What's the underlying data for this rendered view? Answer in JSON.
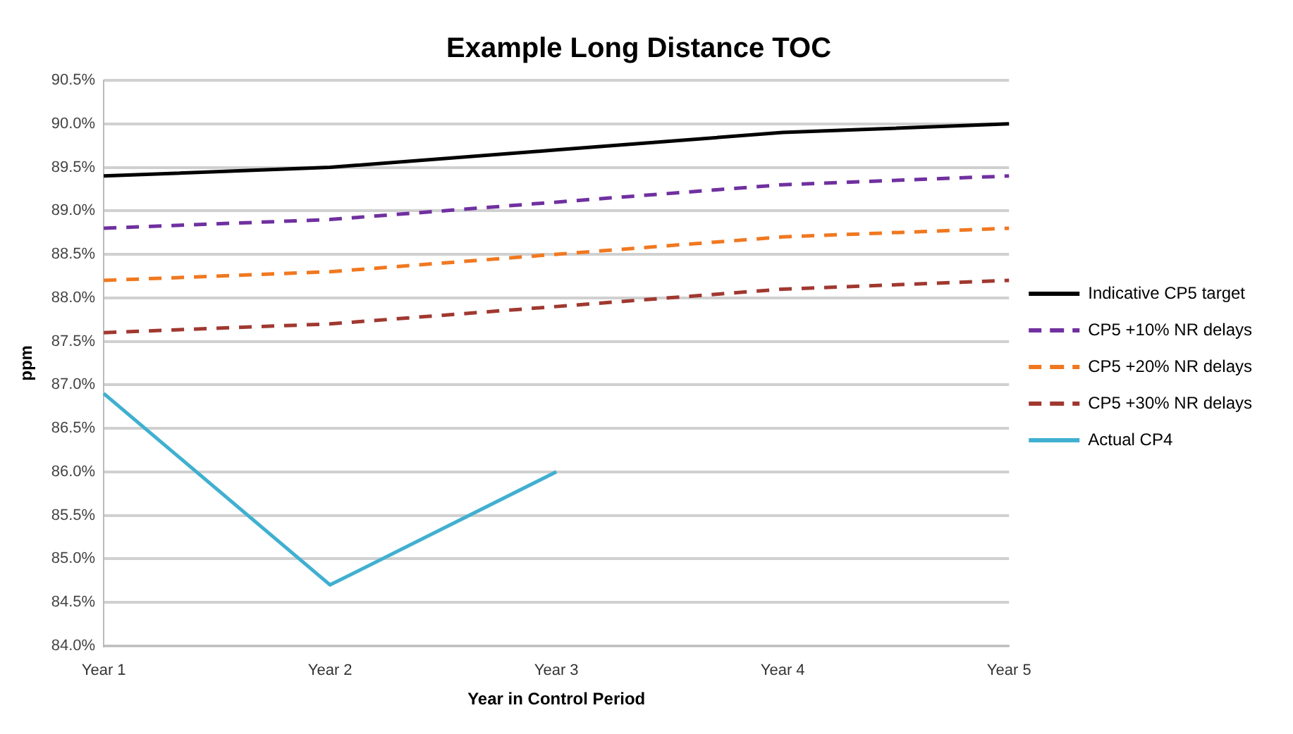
{
  "chart_data": {
    "type": "line",
    "title": "Example Long Distance TOC",
    "xlabel": "Year in Control Period",
    "ylabel": "ppm",
    "categories": [
      "Year 1",
      "Year 2",
      "Year 3",
      "Year 4",
      "Year 5"
    ],
    "series": [
      {
        "name": "Indicative CP5 target",
        "color": "#000000",
        "line_style": "solid",
        "values": [
          89.4,
          89.5,
          89.7,
          89.9,
          90.0
        ]
      },
      {
        "name": "CP5 +10% NR delays",
        "color": "#7030a0",
        "line_style": "dashed",
        "values": [
          88.8,
          88.9,
          89.1,
          89.3,
          89.4
        ]
      },
      {
        "name": "CP5 +20% NR delays",
        "color": "#f07820",
        "line_style": "dashed",
        "values": [
          88.2,
          88.3,
          88.5,
          88.7,
          88.8
        ]
      },
      {
        "name": "CP5 +30% NR delays",
        "color": "#a03830",
        "line_style": "dashed",
        "values": [
          87.6,
          87.7,
          87.9,
          88.1,
          88.2
        ]
      },
      {
        "name": "Actual CP4",
        "color": "#40b0d0",
        "line_style": "solid",
        "values": [
          86.9,
          84.7,
          86.0,
          null,
          null
        ]
      }
    ],
    "ylim": [
      84,
      90.5
    ],
    "yticks": [
      {
        "value": 84,
        "label": "84.0%"
      },
      {
        "value": 84.5,
        "label": "84.5%"
      },
      {
        "value": 85,
        "label": "85.0%"
      },
      {
        "value": 85.5,
        "label": "85.5%"
      },
      {
        "value": 86,
        "label": "86.0%"
      },
      {
        "value": 86.5,
        "label": "86.5%"
      },
      {
        "value": 87,
        "label": "87.0%"
      },
      {
        "value": 87.5,
        "label": "87.5%"
      },
      {
        "value": 88,
        "label": "88.0%"
      },
      {
        "value": 88.5,
        "label": "88.5%"
      },
      {
        "value": 89,
        "label": "89.0%"
      },
      {
        "value": 89.5,
        "label": "89.5%"
      },
      {
        "value": 90,
        "label": "90.0%"
      },
      {
        "value": 90.5,
        "label": "90.5%"
      }
    ],
    "grid": "y",
    "legend": "right",
    "marker": "none"
  }
}
